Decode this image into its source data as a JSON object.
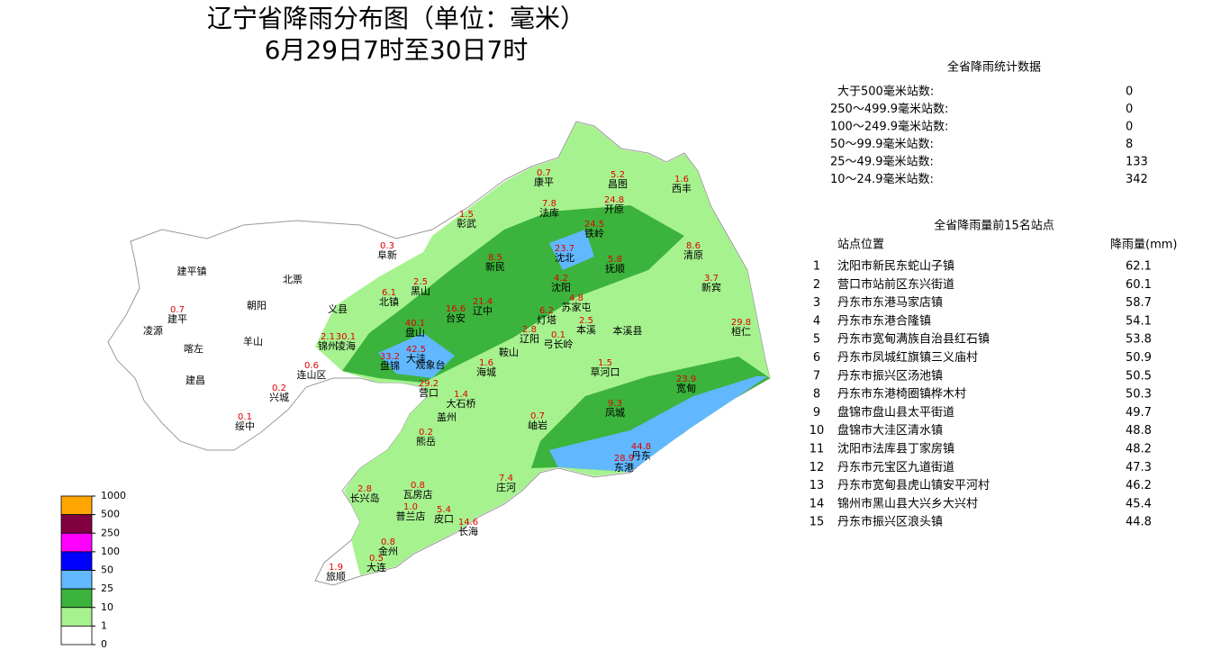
{
  "header": {
    "title": "辽宁省降雨分布图（单位：毫米）",
    "subtitle": "6月29日7时至30日7时"
  },
  "stats": {
    "title": "全省降雨统计数据",
    "rows": [
      [
        "大于500毫米站数:",
        0
      ],
      [
        "250～499.9毫米站数:",
        0
      ],
      [
        "100～249.9毫米站数:",
        0
      ],
      [
        "50～99.9毫米站数:",
        8
      ],
      [
        "25～49.9毫米站数:",
        133
      ],
      [
        "10～24.9毫米站数:",
        342
      ]
    ]
  },
  "top15": {
    "title": "全省降雨量前15名站点",
    "col_site": "站点位置",
    "col_rain": "降雨量(mm)",
    "rows": [
      [
        1,
        "沈阳市新民东蛇山子镇",
        62.1
      ],
      [
        2,
        "营口市站前区东兴街道",
        60.1
      ],
      [
        3,
        "丹东市东港马家店镇",
        58.7
      ],
      [
        4,
        "丹东市东港合隆镇",
        54.1
      ],
      [
        5,
        "丹东市宽甸满族自治县红石镇",
        53.8
      ],
      [
        6,
        "丹东市凤城红旗镇三义庙村",
        50.9
      ],
      [
        7,
        "丹东市振兴区汤池镇",
        50.5
      ],
      [
        8,
        "丹东市东港椅圈镇桦木村",
        50.3
      ],
      [
        9,
        "盘锦市盘山县太平街道",
        49.7
      ],
      [
        10,
        "盘锦市大洼区清水镇",
        48.8
      ],
      [
        11,
        "沈阳市法库县丁家房镇",
        48.2
      ],
      [
        12,
        "丹东市元宝区九道街道",
        47.3
      ],
      [
        13,
        "丹东市宽甸县虎山镇安平河村",
        46.2
      ],
      [
        14,
        "锦州市黑山县大兴乡大兴村",
        45.4
      ],
      [
        15,
        "丹东市振兴区浪头镇",
        44.8
      ]
    ]
  },
  "legend": {
    "levels": [
      1000,
      500,
      250,
      100,
      50,
      25,
      10,
      1,
      0
    ],
    "colors": [
      "#ffa500",
      "#800040",
      "#ff00ff",
      "#0000ff",
      "#61b8ff",
      "#3cb33c",
      "#a6f28f",
      "#ffffff"
    ]
  },
  "stations": [
    {
      "name": "康平",
      "value": "0.7"
    },
    {
      "name": "昌图",
      "value": "5.2"
    },
    {
      "name": "西丰",
      "value": "1.6"
    },
    {
      "name": "彰武",
      "value": "1.5"
    },
    {
      "name": "法库",
      "value": "7.8"
    },
    {
      "name": "开原",
      "value": "24.8"
    },
    {
      "name": "铁岭",
      "value": "24.5"
    },
    {
      "name": "阜新",
      "value": "0.3"
    },
    {
      "name": "新民",
      "value": "8.5"
    },
    {
      "name": "沈北",
      "value": "23.7"
    },
    {
      "name": "抚顺",
      "value": "5.8"
    },
    {
      "name": "清原",
      "value": "8.6"
    },
    {
      "name": "建平镇"
    },
    {
      "name": "北票"
    },
    {
      "name": "黑山",
      "value": "2.5"
    },
    {
      "name": "义县"
    },
    {
      "name": "北镇",
      "value": "6.1"
    },
    {
      "name": "沈阳",
      "value": "4.2"
    },
    {
      "name": "新宾",
      "value": "3.7"
    },
    {
      "name": "朝阳"
    },
    {
      "name": "辽中",
      "value": "21.4"
    },
    {
      "name": "台安",
      "value": "16.6"
    },
    {
      "name": "苏家屯",
      "value": "4.8"
    },
    {
      "name": "建平",
      "value": "0.7"
    },
    {
      "name": "灯塔",
      "value": "6.2"
    },
    {
      "name": "本溪",
      "value": "2.5"
    },
    {
      "name": "本溪县"
    },
    {
      "name": "桓仁",
      "value": "29.8"
    },
    {
      "name": "凌源"
    },
    {
      "name": "盘山",
      "value": "40.1"
    },
    {
      "name": "辽阳",
      "value": "2.8"
    },
    {
      "name": "锦州",
      "value": "2.1"
    },
    {
      "name": "凌海",
      "value": "30.1"
    },
    {
      "name": "羊山"
    },
    {
      "name": "喀左"
    },
    {
      "name": "大洼",
      "value": "42.5"
    },
    {
      "name": "盘锦",
      "value": "33.2"
    },
    {
      "name": "观象台"
    },
    {
      "name": "鞍山"
    },
    {
      "name": "弓长岭",
      "value": "0.1"
    },
    {
      "name": "海城",
      "value": "1.6"
    },
    {
      "name": "草河口",
      "value": "1.5"
    },
    {
      "name": "连山区",
      "value": "0.6"
    },
    {
      "name": "建昌"
    },
    {
      "name": "营口",
      "value": "29.2"
    },
    {
      "name": "兴城",
      "value": "0.2"
    },
    {
      "name": "宽甸",
      "value": "23.9"
    },
    {
      "name": "大石桥",
      "value": "1.4"
    },
    {
      "name": "绥中",
      "value": "0.1"
    },
    {
      "name": "盖州"
    },
    {
      "name": "岫岩",
      "value": "0.7"
    },
    {
      "name": "凤城",
      "value": "9.3"
    },
    {
      "name": "熊岳",
      "value": "0.2"
    },
    {
      "name": "丹东",
      "value": "44.8"
    },
    {
      "name": "东港",
      "value": "28.9"
    },
    {
      "name": "长兴岛",
      "value": "2.8"
    },
    {
      "name": "瓦房店",
      "value": "0.8"
    },
    {
      "name": "庄河",
      "value": "7.4"
    },
    {
      "name": "普兰店",
      "value": "1.0"
    },
    {
      "name": "皮口",
      "value": "5.4"
    },
    {
      "name": "长海",
      "value": "14.6"
    },
    {
      "name": "金州",
      "value": "0.8"
    },
    {
      "name": "旅顺",
      "value": "1.9"
    },
    {
      "name": "大连",
      "value": "0.5"
    }
  ]
}
